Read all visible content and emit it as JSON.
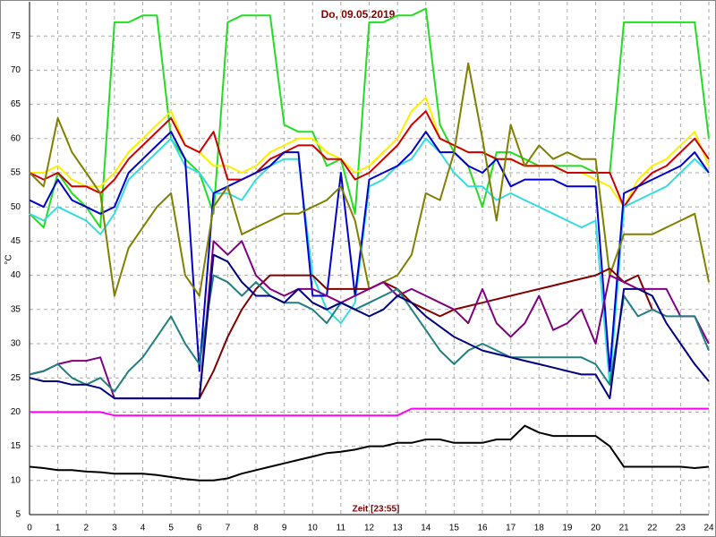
{
  "chart_data": {
    "type": "line",
    "title": "Do, 09.05.2019",
    "xlabel": "Zeit [23:55]",
    "ylabel": "°C",
    "x": [
      0,
      0.5,
      1,
      1.5,
      2,
      2.5,
      3,
      3.5,
      4,
      4.5,
      5,
      5.5,
      6,
      6.5,
      7,
      7.5,
      8,
      8.5,
      9,
      9.5,
      10,
      10.5,
      11,
      11.5,
      12,
      12.5,
      13,
      13.5,
      14,
      14.5,
      15,
      15.5,
      16,
      16.5,
      17,
      17.5,
      18,
      18.5,
      19,
      19.5,
      20,
      20.5,
      21,
      21.5,
      22,
      22.5,
      23,
      23.5,
      24
    ],
    "xlim": [
      0,
      24
    ],
    "xticks": [
      0,
      1,
      2,
      3,
      4,
      5,
      6,
      7,
      8,
      9,
      10,
      11,
      12,
      13,
      14,
      15,
      16,
      17,
      18,
      19,
      20,
      21,
      22,
      23,
      24
    ],
    "ylim": [
      5,
      80
    ],
    "yticks": [
      5,
      10,
      15,
      20,
      25,
      30,
      35,
      40,
      45,
      50,
      55,
      60,
      65,
      70,
      75
    ],
    "grid": true,
    "series": [
      {
        "color": "#22dd22",
        "values": [
          49,
          47,
          55,
          52,
          50,
          47,
          77,
          77,
          78,
          78,
          60,
          57,
          55,
          49,
          77,
          78,
          78,
          78,
          62,
          61,
          61,
          56,
          57,
          49,
          77,
          77,
          78,
          78,
          79,
          62,
          58,
          56,
          50,
          58,
          58,
          57,
          56,
          56,
          56,
          56,
          55,
          55,
          77,
          77,
          77,
          77,
          77,
          77,
          60
        ]
      },
      {
        "color": "#ffee00",
        "values": [
          55,
          55,
          56,
          54,
          53,
          53,
          55,
          58,
          60,
          62,
          64,
          59,
          58,
          56,
          56,
          55,
          56,
          58,
          59,
          60,
          60,
          58,
          57,
          55,
          56,
          58,
          60,
          64,
          66,
          60,
          59,
          58,
          58,
          57,
          57,
          56,
          56,
          56,
          55,
          55,
          54,
          53,
          50,
          54,
          56,
          57,
          59,
          61,
          56
        ]
      },
      {
        "color": "#cc0000",
        "values": [
          55,
          54,
          55,
          53,
          53,
          52,
          54,
          57,
          59,
          61,
          63,
          59,
          58,
          61,
          54,
          54,
          55,
          57,
          58,
          59,
          59,
          57,
          57,
          54,
          55,
          57,
          59,
          62,
          64,
          60,
          59,
          58,
          58,
          57,
          57,
          56,
          56,
          56,
          55,
          55,
          55,
          55,
          50,
          53,
          55,
          56,
          58,
          60,
          57
        ]
      },
      {
        "color": "#33dddd",
        "values": [
          49,
          48,
          50,
          49,
          48,
          46,
          49,
          54,
          56,
          58,
          60,
          56,
          55,
          52,
          52,
          51,
          54,
          56,
          57,
          57,
          40,
          35,
          33,
          36,
          53,
          54,
          56,
          57,
          60,
          58,
          55,
          53,
          53,
          51,
          52,
          51,
          50,
          49,
          48,
          47,
          48,
          24,
          50,
          51,
          52,
          53,
          55,
          57,
          55
        ]
      },
      {
        "color": "#0000cc",
        "values": [
          51,
          50,
          54,
          51,
          50,
          49,
          50,
          55,
          57,
          59,
          61,
          57,
          26,
          52,
          53,
          54,
          55,
          56,
          58,
          58,
          37,
          37,
          55,
          37,
          54,
          55,
          56,
          58,
          61,
          58,
          58,
          56,
          55,
          57,
          53,
          54,
          54,
          54,
          53,
          53,
          53,
          26,
          52,
          53,
          54,
          55,
          56,
          58,
          55
        ]
      },
      {
        "color": "#808000",
        "values": [
          55,
          53,
          63,
          58,
          55,
          52,
          37,
          44,
          47,
          50,
          52,
          40,
          37,
          50,
          53,
          46,
          47,
          48,
          49,
          49,
          50,
          51,
          53,
          48,
          38,
          39,
          40,
          43,
          52,
          51,
          58,
          71,
          60,
          48,
          62,
          56,
          59,
          57,
          58,
          57,
          57,
          40,
          46,
          46,
          46,
          47,
          48,
          49,
          39
        ]
      },
      {
        "color": "#800000",
        "values": [
          null,
          null,
          null,
          null,
          null,
          null,
          null,
          null,
          null,
          null,
          null,
          null,
          22,
          26,
          31,
          35,
          38,
          40,
          40,
          40,
          40,
          38,
          38,
          38,
          38,
          39,
          38,
          36,
          35,
          34,
          35,
          35.5,
          36,
          36.5,
          37,
          37.5,
          38,
          38.5,
          39,
          39.5,
          40,
          41,
          39,
          40,
          35,
          null,
          null,
          null,
          null
        ]
      },
      {
        "color": "#800080",
        "values": [
          25.5,
          26,
          27,
          27.5,
          27.5,
          28,
          22,
          22,
          22,
          22,
          22,
          22,
          22,
          45,
          43,
          45,
          40,
          38,
          37,
          38,
          38,
          37,
          36,
          37,
          38,
          39,
          37,
          38,
          37,
          36,
          35,
          33,
          38,
          33,
          31,
          33,
          37,
          32,
          33,
          35,
          30,
          40,
          39,
          38,
          38,
          38,
          34,
          34,
          30
        ]
      },
      {
        "color": "#208080",
        "values": [
          25.5,
          26,
          27,
          25,
          24,
          25,
          23,
          26,
          28,
          31,
          34,
          30,
          27,
          40,
          39,
          37,
          39,
          37,
          36,
          36,
          35,
          33,
          36,
          35,
          36,
          37,
          38,
          35,
          32,
          29,
          27,
          29,
          30,
          29,
          28,
          28,
          28,
          28,
          28,
          28,
          27,
          24,
          37,
          34,
          35,
          34,
          34,
          34,
          29
        ]
      },
      {
        "color": "#000080",
        "values": [
          25,
          24.5,
          24.5,
          24,
          24,
          23.5,
          22,
          22,
          22,
          22,
          22,
          22,
          22,
          43,
          42,
          39,
          37,
          37,
          36,
          38,
          36,
          35,
          36,
          35,
          34,
          35,
          37,
          36,
          34,
          32.5,
          31,
          30,
          29,
          28.5,
          28,
          27.5,
          27,
          26.5,
          26,
          25.5,
          25.5,
          22,
          38,
          38,
          37,
          33,
          30,
          27,
          24.5
        ]
      },
      {
        "color": "#ff00ff",
        "values": [
          20,
          20,
          20,
          20,
          20,
          20,
          19.5,
          19.5,
          19.5,
          19.5,
          19.5,
          19.5,
          19.5,
          19.5,
          19.5,
          19.5,
          19.5,
          19.5,
          19.5,
          19.5,
          19.5,
          19.5,
          19.5,
          19.5,
          19.5,
          19.5,
          19.5,
          20.5,
          20.5,
          20.5,
          20.5,
          20.5,
          20.5,
          20.5,
          20.5,
          20.5,
          20.5,
          20.5,
          20.5,
          20.5,
          20.5,
          20.5,
          20.5,
          20.5,
          20.5,
          20.5,
          20.5,
          20.5,
          20.5
        ]
      },
      {
        "color": "#000000",
        "values": [
          12,
          11.8,
          11.5,
          11.5,
          11.3,
          11.2,
          11,
          11,
          11,
          10.8,
          10.5,
          10.2,
          10,
          10,
          10.3,
          11,
          11.5,
          12,
          12.5,
          13,
          13.5,
          14,
          14.2,
          14.5,
          15,
          15,
          15.5,
          15.5,
          16,
          16,
          15.5,
          15.5,
          15.5,
          16,
          16,
          18,
          17,
          16.5,
          16.5,
          16.5,
          16.5,
          15,
          12,
          12,
          12,
          12,
          12,
          11.8,
          12
        ]
      }
    ]
  }
}
